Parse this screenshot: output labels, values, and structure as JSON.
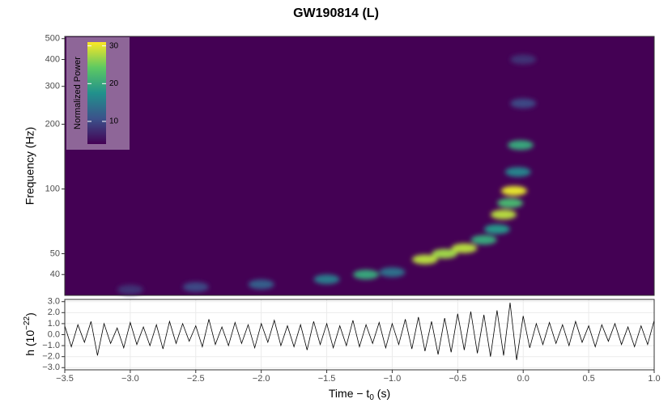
{
  "chart_data": [
    {
      "type": "heatmap",
      "title": "GW190814 (L)",
      "y_label": "Frequency (Hz)",
      "ylog": true,
      "xlim": [
        -3.5,
        1.0
      ],
      "ylim": [
        32,
        512
      ],
      "yticks": [
        40,
        50,
        100,
        200,
        300,
        400,
        500
      ],
      "colormap": "viridis",
      "colorbar_label": "Normalized Power",
      "clim": [
        4,
        31
      ],
      "cticks": [
        10,
        20,
        30
      ],
      "track": {
        "x": [
          -3.0,
          -2.5,
          -2.0,
          -1.5,
          -1.2,
          -1.0,
          -0.75,
          -0.6,
          -0.45,
          -0.3,
          -0.2,
          -0.15,
          -0.1,
          -0.07,
          -0.04,
          -0.02,
          0.0,
          0.0
        ],
        "y": [
          34,
          35,
          36,
          38,
          40,
          41,
          47,
          50,
          53,
          58,
          65,
          76,
          86,
          98,
          120,
          160,
          250,
          400
        ],
        "power": [
          8,
          10,
          12,
          15,
          20,
          14,
          28,
          27,
          28,
          20,
          18,
          28,
          22,
          30,
          16,
          20,
          10,
          8
        ]
      }
    },
    {
      "type": "line",
      "x_label": [
        "Time − t",
        "0",
        " (s)"
      ],
      "y_label": [
        "h (10",
        "−22",
        ")"
      ],
      "grid": true,
      "color": "#000000",
      "xlim": [
        -3.5,
        1.0
      ],
      "ylim": [
        -3.2,
        3.2
      ],
      "xticks": [
        {
          "value": -3.5,
          "label": "−3.5"
        },
        {
          "value": -3.0,
          "label": "−3.0"
        },
        {
          "value": -2.5,
          "label": "−2.5"
        },
        {
          "value": -2.0,
          "label": "−2.0"
        },
        {
          "value": -1.5,
          "label": "−1.5"
        },
        {
          "value": -1.0,
          "label": "−1.0"
        },
        {
          "value": -0.5,
          "label": "−0.5"
        },
        {
          "value": 0,
          "label": "0.0"
        },
        {
          "value": 0.5,
          "label": "0.5"
        },
        {
          "value": 1,
          "label": "1.0"
        }
      ],
      "yticks": [
        {
          "value": 3,
          "label": "3.0"
        },
        {
          "value": 2,
          "label": "2.0"
        },
        {
          "value": 1,
          "label": "1.0"
        },
        {
          "value": 0,
          "label": "0.0"
        },
        {
          "value": -1,
          "label": "−1.0"
        },
        {
          "value": -2,
          "label": "−2.0"
        },
        {
          "value": -3,
          "label": "−3.0"
        }
      ],
      "x": [
        -3.5,
        -3.45,
        -3.4,
        -3.35,
        -3.3,
        -3.25,
        -3.2,
        -3.15,
        -3.1,
        -3.05,
        -3.0,
        -2.95,
        -2.9,
        -2.85,
        -2.8,
        -2.75,
        -2.7,
        -2.65,
        -2.6,
        -2.55,
        -2.5,
        -2.45,
        -2.4,
        -2.35,
        -2.3,
        -2.25,
        -2.2,
        -2.15,
        -2.1,
        -2.05,
        -2.0,
        -1.95,
        -1.9,
        -1.85,
        -1.8,
        -1.75,
        -1.7,
        -1.65,
        -1.6,
        -1.55,
        -1.5,
        -1.45,
        -1.4,
        -1.35,
        -1.3,
        -1.25,
        -1.2,
        -1.15,
        -1.1,
        -1.05,
        -1.0,
        -0.95,
        -0.9,
        -0.85,
        -0.8,
        -0.75,
        -0.7,
        -0.65,
        -0.6,
        -0.55,
        -0.5,
        -0.45,
        -0.4,
        -0.35,
        -0.3,
        -0.25,
        -0.2,
        -0.15,
        -0.1,
        -0.05,
        0.0,
        0.05,
        0.1,
        0.15,
        0.2,
        0.25,
        0.3,
        0.35,
        0.4,
        0.45,
        0.5,
        0.55,
        0.6,
        0.65,
        0.7,
        0.75,
        0.8,
        0.85,
        0.9,
        0.95,
        1.0
      ],
      "values": [
        0.8,
        -1.1,
        0.9,
        -0.7,
        1.2,
        -1.9,
        1.0,
        -0.8,
        0.6,
        -1.2,
        1.1,
        -0.9,
        0.7,
        -1.0,
        0.9,
        -1.3,
        1.2,
        -0.8,
        1.0,
        -0.6,
        0.8,
        -1.1,
        1.4,
        -0.9,
        0.7,
        -1.0,
        1.1,
        -0.8,
        0.9,
        -1.2,
        1.0,
        -0.7,
        1.3,
        -1.0,
        0.8,
        -1.1,
        0.9,
        -1.4,
        1.2,
        -0.9,
        1.0,
        -1.2,
        0.8,
        -1.0,
        1.3,
        -1.1,
        0.9,
        -0.8,
        1.1,
        -1.2,
        1.0,
        -0.9,
        1.4,
        -1.3,
        1.6,
        -1.5,
        1.2,
        -1.8,
        1.5,
        -1.6,
        1.9,
        -1.4,
        2.1,
        -1.7,
        1.8,
        -2.0,
        2.2,
        -1.9,
        2.9,
        -2.3,
        1.7,
        -1.2,
        1.0,
        -0.9,
        1.1,
        -0.8,
        0.9,
        -1.0,
        1.2,
        -0.7,
        0.8,
        -1.1,
        0.9,
        -0.6,
        1.0,
        -0.9,
        0.7,
        -1.1,
        0.8,
        -0.9,
        1.3
      ]
    }
  ]
}
